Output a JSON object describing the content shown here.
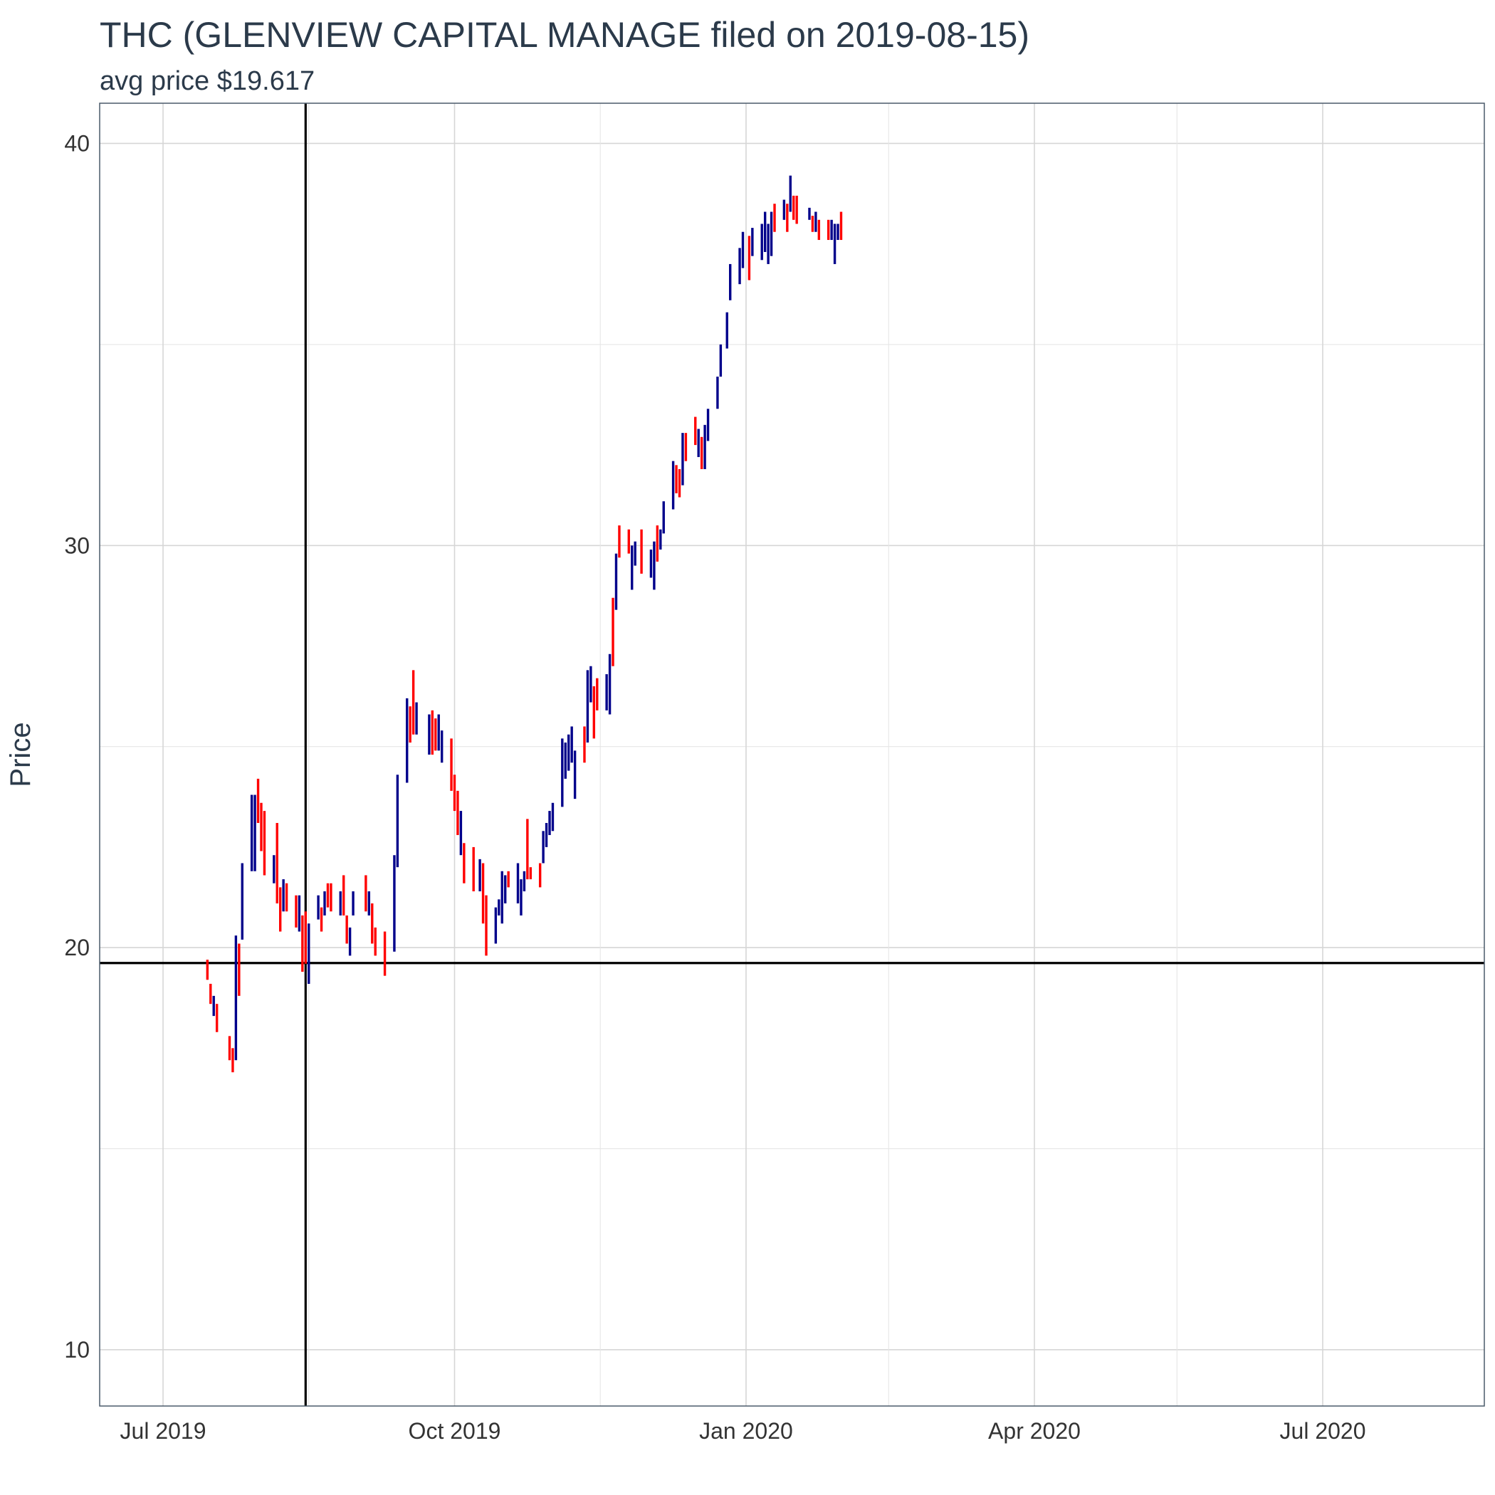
{
  "chart_data": {
    "type": "ohlc",
    "title": "THC (GLENVIEW CAPITAL MANAGE filed on 2019-08-15)",
    "subtitle": "avg price $19.617",
    "ylabel": "Price",
    "xlabel": "",
    "x_range": [
      "2019-06-11",
      "2020-08-21"
    ],
    "ylim": [
      8.6,
      41.0
    ],
    "y_ticks": [
      10,
      20,
      30,
      40
    ],
    "x_ticks": [
      {
        "date": "2019-07-01",
        "label": "Jul 2019"
      },
      {
        "date": "2019-10-01",
        "label": "Oct 2019"
      },
      {
        "date": "2020-01-01",
        "label": "Jan 2020"
      },
      {
        "date": "2020-04-01",
        "label": "Apr 2020"
      },
      {
        "date": "2020-07-01",
        "label": "Jul 2020"
      }
    ],
    "grid": true,
    "reference_lines": {
      "vline_date": "2019-08-15",
      "hline_value": 19.617
    },
    "colors": {
      "up": "#00008b",
      "down": "#ff0000",
      "reference": "#000000"
    },
    "series": [
      {
        "date": "2019-07-15",
        "low": 19.2,
        "high": 19.7,
        "dir": "down"
      },
      {
        "date": "2019-07-16",
        "low": 18.6,
        "high": 19.1,
        "dir": "down"
      },
      {
        "date": "2019-07-17",
        "low": 18.3,
        "high": 18.8,
        "dir": "up"
      },
      {
        "date": "2019-07-18",
        "low": 17.9,
        "high": 18.6,
        "dir": "down"
      },
      {
        "date": "2019-07-22",
        "low": 17.2,
        "high": 17.8,
        "dir": "down"
      },
      {
        "date": "2019-07-23",
        "low": 16.9,
        "high": 17.5,
        "dir": "down"
      },
      {
        "date": "2019-07-24",
        "low": 17.2,
        "high": 20.3,
        "dir": "up"
      },
      {
        "date": "2019-07-25",
        "low": 18.8,
        "high": 20.1,
        "dir": "down"
      },
      {
        "date": "2019-07-26",
        "low": 20.2,
        "high": 22.1,
        "dir": "up"
      },
      {
        "date": "2019-07-29",
        "low": 21.9,
        "high": 23.8,
        "dir": "up"
      },
      {
        "date": "2019-07-30",
        "low": 21.9,
        "high": 23.8,
        "dir": "up"
      },
      {
        "date": "2019-07-31",
        "low": 23.1,
        "high": 24.2,
        "dir": "down"
      },
      {
        "date": "2019-08-01",
        "low": 22.4,
        "high": 23.6,
        "dir": "down"
      },
      {
        "date": "2019-08-02",
        "low": 21.8,
        "high": 23.4,
        "dir": "down"
      },
      {
        "date": "2019-08-05",
        "low": 21.6,
        "high": 22.3,
        "dir": "up"
      },
      {
        "date": "2019-08-06",
        "low": 21.1,
        "high": 23.1,
        "dir": "down"
      },
      {
        "date": "2019-08-07",
        "low": 20.4,
        "high": 21.5,
        "dir": "down"
      },
      {
        "date": "2019-08-08",
        "low": 20.9,
        "high": 21.7,
        "dir": "up"
      },
      {
        "date": "2019-08-09",
        "low": 20.9,
        "high": 21.6,
        "dir": "down"
      },
      {
        "date": "2019-08-12",
        "low": 20.5,
        "high": 21.3,
        "dir": "down"
      },
      {
        "date": "2019-08-13",
        "low": 20.4,
        "high": 21.3,
        "dir": "up"
      },
      {
        "date": "2019-08-14",
        "low": 19.4,
        "high": 20.8,
        "dir": "down"
      },
      {
        "date": "2019-08-15",
        "low": 19.6,
        "high": 20.9,
        "dir": "down"
      },
      {
        "date": "2019-08-16",
        "low": 19.1,
        "high": 20.6,
        "dir": "up"
      },
      {
        "date": "2019-08-19",
        "low": 20.7,
        "high": 21.3,
        "dir": "up"
      },
      {
        "date": "2019-08-20",
        "low": 20.4,
        "high": 21.0,
        "dir": "down"
      },
      {
        "date": "2019-08-21",
        "low": 20.8,
        "high": 21.4,
        "dir": "up"
      },
      {
        "date": "2019-08-22",
        "low": 21.0,
        "high": 21.6,
        "dir": "down"
      },
      {
        "date": "2019-08-23",
        "low": 20.9,
        "high": 21.6,
        "dir": "down"
      },
      {
        "date": "2019-08-26",
        "low": 20.8,
        "high": 21.4,
        "dir": "up"
      },
      {
        "date": "2019-08-27",
        "low": 20.8,
        "high": 21.8,
        "dir": "down"
      },
      {
        "date": "2019-08-28",
        "low": 20.1,
        "high": 20.8,
        "dir": "down"
      },
      {
        "date": "2019-08-29",
        "low": 19.8,
        "high": 20.5,
        "dir": "up"
      },
      {
        "date": "2019-08-30",
        "low": 20.8,
        "high": 21.4,
        "dir": "up"
      },
      {
        "date": "2019-09-03",
        "low": 20.9,
        "high": 21.8,
        "dir": "down"
      },
      {
        "date": "2019-09-04",
        "low": 20.8,
        "high": 21.4,
        "dir": "up"
      },
      {
        "date": "2019-09-05",
        "low": 20.1,
        "high": 21.1,
        "dir": "down"
      },
      {
        "date": "2019-09-06",
        "low": 19.8,
        "high": 20.5,
        "dir": "down"
      },
      {
        "date": "2019-09-09",
        "low": 19.3,
        "high": 20.4,
        "dir": "down"
      },
      {
        "date": "2019-09-12",
        "low": 19.9,
        "high": 22.3,
        "dir": "up"
      },
      {
        "date": "2019-09-13",
        "low": 22.0,
        "high": 24.3,
        "dir": "up"
      },
      {
        "date": "2019-09-16",
        "low": 24.1,
        "high": 26.2,
        "dir": "up"
      },
      {
        "date": "2019-09-17",
        "low": 25.1,
        "high": 26.0,
        "dir": "down"
      },
      {
        "date": "2019-09-18",
        "low": 25.3,
        "high": 26.9,
        "dir": "down"
      },
      {
        "date": "2019-09-19",
        "low": 25.3,
        "high": 26.1,
        "dir": "up"
      },
      {
        "date": "2019-09-23",
        "low": 24.8,
        "high": 25.8,
        "dir": "up"
      },
      {
        "date": "2019-09-24",
        "low": 24.8,
        "high": 25.9,
        "dir": "down"
      },
      {
        "date": "2019-09-25",
        "low": 24.9,
        "high": 25.7,
        "dir": "down"
      },
      {
        "date": "2019-09-26",
        "low": 24.9,
        "high": 25.8,
        "dir": "up"
      },
      {
        "date": "2019-09-27",
        "low": 24.6,
        "high": 25.4,
        "dir": "up"
      },
      {
        "date": "2019-09-30",
        "low": 23.9,
        "high": 25.2,
        "dir": "down"
      },
      {
        "date": "2019-10-01",
        "low": 23.4,
        "high": 24.3,
        "dir": "down"
      },
      {
        "date": "2019-10-02",
        "low": 22.8,
        "high": 23.9,
        "dir": "down"
      },
      {
        "date": "2019-10-03",
        "low": 22.3,
        "high": 23.4,
        "dir": "up"
      },
      {
        "date": "2019-10-04",
        "low": 21.6,
        "high": 22.6,
        "dir": "down"
      },
      {
        "date": "2019-10-07",
        "low": 21.4,
        "high": 22.5,
        "dir": "down"
      },
      {
        "date": "2019-10-09",
        "low": 21.4,
        "high": 22.2,
        "dir": "up"
      },
      {
        "date": "2019-10-10",
        "low": 20.6,
        "high": 22.1,
        "dir": "down"
      },
      {
        "date": "2019-10-11",
        "low": 19.8,
        "high": 21.3,
        "dir": "down"
      },
      {
        "date": "2019-10-14",
        "low": 20.1,
        "high": 21.0,
        "dir": "up"
      },
      {
        "date": "2019-10-15",
        "low": 20.8,
        "high": 21.2,
        "dir": "up"
      },
      {
        "date": "2019-10-16",
        "low": 20.6,
        "high": 21.9,
        "dir": "up"
      },
      {
        "date": "2019-10-17",
        "low": 21.1,
        "high": 21.8,
        "dir": "up"
      },
      {
        "date": "2019-10-18",
        "low": 21.5,
        "high": 21.9,
        "dir": "down"
      },
      {
        "date": "2019-10-21",
        "low": 21.1,
        "high": 22.1,
        "dir": "up"
      },
      {
        "date": "2019-10-22",
        "low": 20.8,
        "high": 21.7,
        "dir": "up"
      },
      {
        "date": "2019-10-23",
        "low": 21.4,
        "high": 21.9,
        "dir": "up"
      },
      {
        "date": "2019-10-24",
        "low": 21.7,
        "high": 23.2,
        "dir": "down"
      },
      {
        "date": "2019-10-25",
        "low": 21.7,
        "high": 22.0,
        "dir": "down"
      },
      {
        "date": "2019-10-28",
        "low": 21.5,
        "high": 22.1,
        "dir": "down"
      },
      {
        "date": "2019-10-29",
        "low": 22.1,
        "high": 22.9,
        "dir": "up"
      },
      {
        "date": "2019-10-30",
        "low": 22.5,
        "high": 23.1,
        "dir": "up"
      },
      {
        "date": "2019-10-31",
        "low": 22.8,
        "high": 23.4,
        "dir": "up"
      },
      {
        "date": "2019-11-01",
        "low": 22.9,
        "high": 23.6,
        "dir": "up"
      },
      {
        "date": "2019-11-04",
        "low": 23.5,
        "high": 25.2,
        "dir": "up"
      },
      {
        "date": "2019-11-05",
        "low": 24.2,
        "high": 25.1,
        "dir": "up"
      },
      {
        "date": "2019-11-06",
        "low": 24.4,
        "high": 25.3,
        "dir": "up"
      },
      {
        "date": "2019-11-07",
        "low": 24.6,
        "high": 25.5,
        "dir": "up"
      },
      {
        "date": "2019-11-08",
        "low": 23.7,
        "high": 24.9,
        "dir": "up"
      },
      {
        "date": "2019-11-11",
        "low": 24.6,
        "high": 25.5,
        "dir": "down"
      },
      {
        "date": "2019-11-12",
        "low": 25.1,
        "high": 26.9,
        "dir": "up"
      },
      {
        "date": "2019-11-13",
        "low": 26.1,
        "high": 27.0,
        "dir": "up"
      },
      {
        "date": "2019-11-14",
        "low": 25.2,
        "high": 26.5,
        "dir": "down"
      },
      {
        "date": "2019-11-15",
        "low": 25.9,
        "high": 26.7,
        "dir": "down"
      },
      {
        "date": "2019-11-18",
        "low": 25.9,
        "high": 26.8,
        "dir": "up"
      },
      {
        "date": "2019-11-19",
        "low": 25.8,
        "high": 27.3,
        "dir": "up"
      },
      {
        "date": "2019-11-20",
        "low": 27.0,
        "high": 28.7,
        "dir": "down"
      },
      {
        "date": "2019-11-21",
        "low": 28.4,
        "high": 29.8,
        "dir": "up"
      },
      {
        "date": "2019-11-22",
        "low": 29.7,
        "high": 30.5,
        "dir": "down"
      },
      {
        "date": "2019-11-25",
        "low": 29.8,
        "high": 30.4,
        "dir": "down"
      },
      {
        "date": "2019-11-26",
        "low": 28.9,
        "high": 30.0,
        "dir": "up"
      },
      {
        "date": "2019-11-27",
        "low": 29.5,
        "high": 30.1,
        "dir": "up"
      },
      {
        "date": "2019-11-29",
        "low": 29.3,
        "high": 30.4,
        "dir": "down"
      },
      {
        "date": "2019-12-02",
        "low": 29.2,
        "high": 29.9,
        "dir": "up"
      },
      {
        "date": "2019-12-03",
        "low": 28.9,
        "high": 30.1,
        "dir": "up"
      },
      {
        "date": "2019-12-04",
        "low": 29.6,
        "high": 30.5,
        "dir": "down"
      },
      {
        "date": "2019-12-05",
        "low": 29.9,
        "high": 30.4,
        "dir": "up"
      },
      {
        "date": "2019-12-06",
        "low": 30.3,
        "high": 31.1,
        "dir": "up"
      },
      {
        "date": "2019-12-09",
        "low": 30.9,
        "high": 32.1,
        "dir": "up"
      },
      {
        "date": "2019-12-10",
        "low": 31.3,
        "high": 32.0,
        "dir": "down"
      },
      {
        "date": "2019-12-11",
        "low": 31.2,
        "high": 31.9,
        "dir": "down"
      },
      {
        "date": "2019-12-12",
        "low": 31.5,
        "high": 32.8,
        "dir": "up"
      },
      {
        "date": "2019-12-13",
        "low": 32.1,
        "high": 32.8,
        "dir": "down"
      },
      {
        "date": "2019-12-16",
        "low": 32.5,
        "high": 33.2,
        "dir": "down"
      },
      {
        "date": "2019-12-17",
        "low": 32.2,
        "high": 32.9,
        "dir": "up"
      },
      {
        "date": "2019-12-18",
        "low": 31.9,
        "high": 32.7,
        "dir": "down"
      },
      {
        "date": "2019-12-19",
        "low": 31.9,
        "high": 33.0,
        "dir": "up"
      },
      {
        "date": "2019-12-20",
        "low": 32.6,
        "high": 33.4,
        "dir": "up"
      },
      {
        "date": "2019-12-23",
        "low": 33.4,
        "high": 34.2,
        "dir": "up"
      },
      {
        "date": "2019-12-24",
        "low": 34.2,
        "high": 35.0,
        "dir": "up"
      },
      {
        "date": "2019-12-26",
        "low": 34.9,
        "high": 35.8,
        "dir": "up"
      },
      {
        "date": "2019-12-27",
        "low": 36.1,
        "high": 37.0,
        "dir": "up"
      },
      {
        "date": "2019-12-30",
        "low": 36.5,
        "high": 37.4,
        "dir": "up"
      },
      {
        "date": "2019-12-31",
        "low": 36.9,
        "high": 37.8,
        "dir": "up"
      },
      {
        "date": "2020-01-02",
        "low": 36.6,
        "high": 37.7,
        "dir": "down"
      },
      {
        "date": "2020-01-03",
        "low": 37.2,
        "high": 37.9,
        "dir": "up"
      },
      {
        "date": "2020-01-06",
        "low": 37.1,
        "high": 38.0,
        "dir": "up"
      },
      {
        "date": "2020-01-07",
        "low": 37.3,
        "high": 38.3,
        "dir": "up"
      },
      {
        "date": "2020-01-08",
        "low": 37.0,
        "high": 38.0,
        "dir": "up"
      },
      {
        "date": "2020-01-09",
        "low": 37.2,
        "high": 38.3,
        "dir": "up"
      },
      {
        "date": "2020-01-10",
        "low": 37.8,
        "high": 38.5,
        "dir": "down"
      },
      {
        "date": "2020-01-13",
        "low": 38.1,
        "high": 38.6,
        "dir": "up"
      },
      {
        "date": "2020-01-14",
        "low": 37.8,
        "high": 38.5,
        "dir": "down"
      },
      {
        "date": "2020-01-15",
        "low": 38.3,
        "high": 39.2,
        "dir": "up"
      },
      {
        "date": "2020-01-16",
        "low": 38.1,
        "high": 38.7,
        "dir": "down"
      },
      {
        "date": "2020-01-17",
        "low": 38.0,
        "high": 38.7,
        "dir": "down"
      },
      {
        "date": "2020-01-21",
        "low": 38.1,
        "high": 38.4,
        "dir": "up"
      },
      {
        "date": "2020-01-22",
        "low": 37.8,
        "high": 38.2,
        "dir": "down"
      },
      {
        "date": "2020-01-23",
        "low": 37.8,
        "high": 38.3,
        "dir": "up"
      },
      {
        "date": "2020-01-24",
        "low": 37.6,
        "high": 38.1,
        "dir": "down"
      },
      {
        "date": "2020-01-27",
        "low": 37.6,
        "high": 38.1,
        "dir": "down"
      },
      {
        "date": "2020-01-28",
        "low": 37.6,
        "high": 38.1,
        "dir": "up"
      },
      {
        "date": "2020-01-29",
        "low": 37.0,
        "high": 38.0,
        "dir": "up"
      },
      {
        "date": "2020-01-30",
        "low": 37.6,
        "high": 38.0,
        "dir": "up"
      },
      {
        "date": "2020-01-31",
        "low": 37.6,
        "high": 38.3,
        "dir": "down"
      }
    ]
  }
}
